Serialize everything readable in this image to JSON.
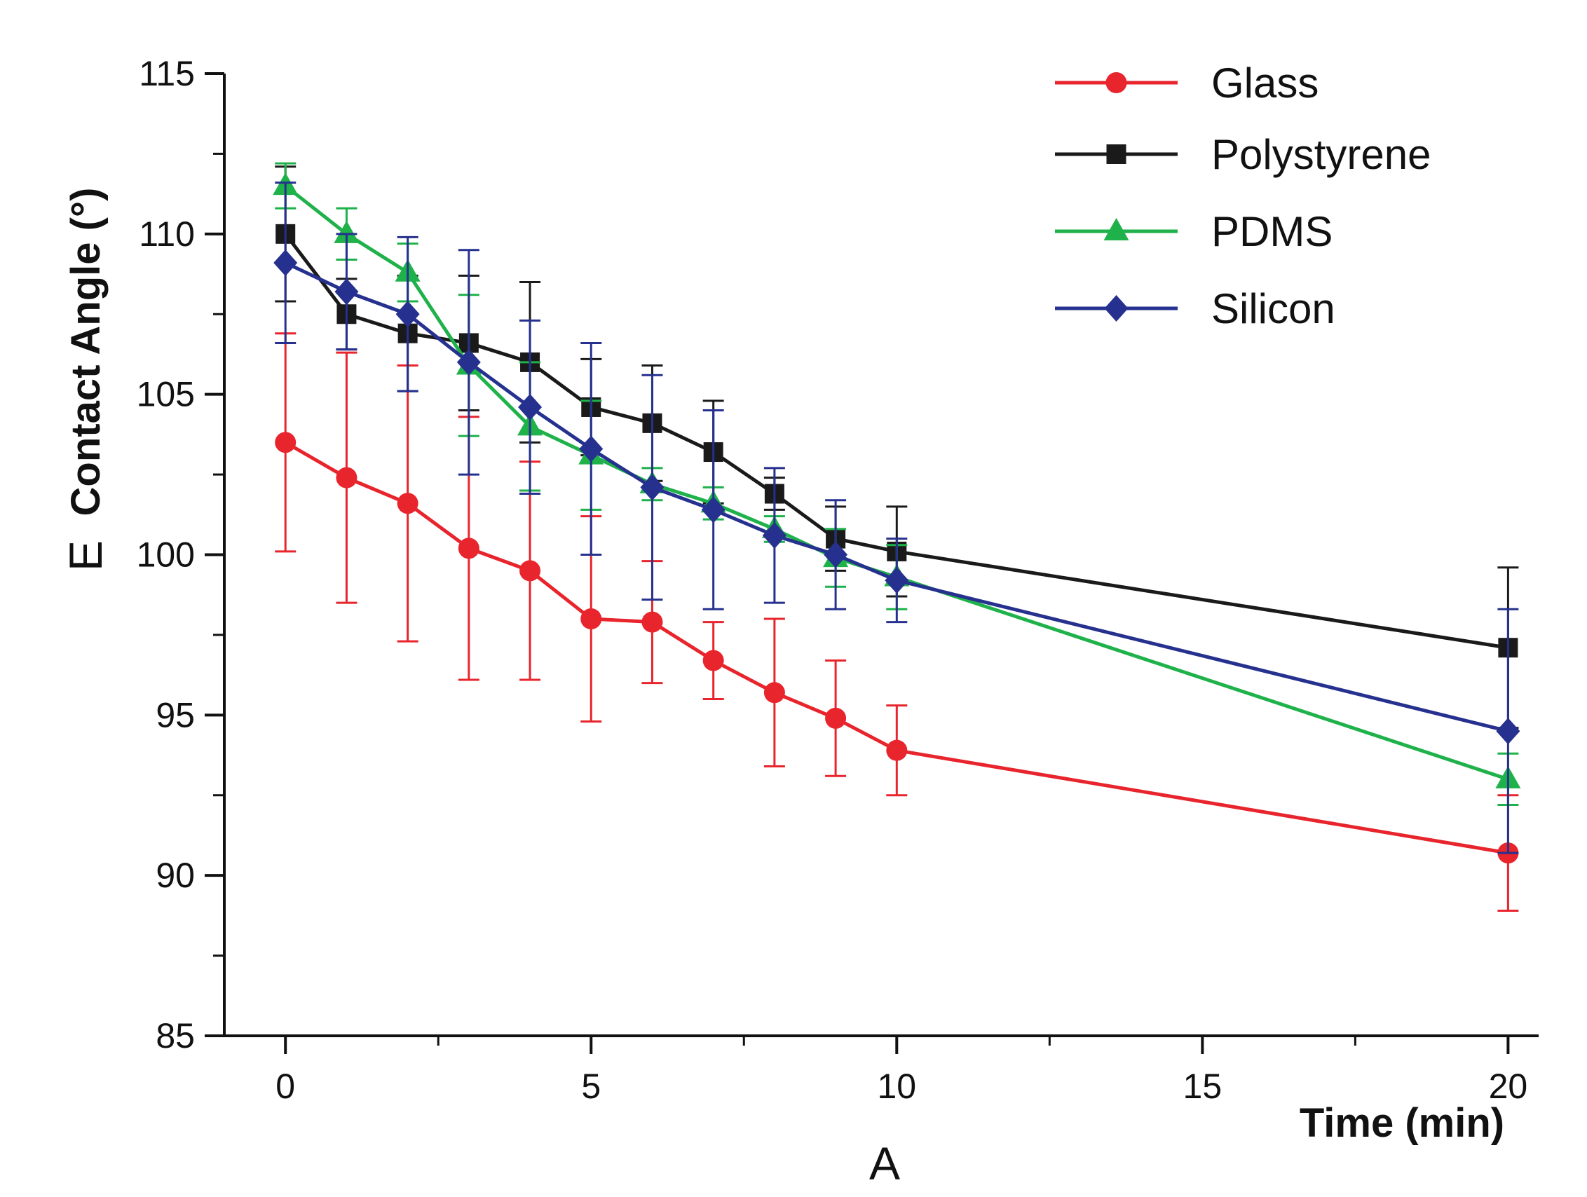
{
  "chart_data": {
    "type": "line",
    "title": "",
    "xlabel": "Time (min)",
    "ylabel": "Contact Angle (°)",
    "xlim": [
      -1,
      20.5
    ],
    "ylim": [
      85,
      115
    ],
    "xticks": [
      0,
      5,
      10,
      15,
      20
    ],
    "xtick_labels": [
      "0",
      "5",
      "10",
      "15",
      "20"
    ],
    "yticks": [
      85,
      90,
      95,
      100,
      105,
      110,
      115
    ],
    "ytick_labels": [
      "85",
      "90",
      "95",
      "100",
      "105",
      "110",
      "115"
    ],
    "x_minor_ticks": [
      2.5,
      7.5,
      12.5,
      17.5
    ],
    "y_minor_ticks": [
      87.5,
      92.5,
      97.5,
      102.5,
      107.5,
      112.5
    ],
    "grid": false,
    "legend_position": "top-right",
    "panel_labels": {
      "x_panel": "A",
      "y_panel": "E"
    },
    "series": [
      {
        "name": "Glass",
        "color": "#e8242c",
        "marker": "circle",
        "x": [
          0,
          1,
          2,
          3,
          4,
          5,
          6,
          7,
          8,
          9,
          10,
          20
        ],
        "y": [
          103.5,
          102.4,
          101.6,
          100.2,
          99.5,
          98.0,
          97.9,
          96.7,
          95.7,
          94.9,
          93.9,
          90.7
        ],
        "err": [
          3.4,
          3.9,
          4.3,
          4.1,
          3.4,
          3.2,
          1.9,
          1.2,
          2.3,
          1.8,
          1.4,
          1.8
        ]
      },
      {
        "name": "Polystyrene",
        "color": "#1a1a1a",
        "marker": "square",
        "x": [
          0,
          1,
          2,
          3,
          4,
          5,
          6,
          7,
          8,
          9,
          10,
          20
        ],
        "y": [
          110.0,
          107.5,
          106.9,
          106.6,
          106.0,
          104.6,
          104.1,
          103.2,
          101.9,
          100.5,
          100.1,
          97.1
        ],
        "err": [
          2.1,
          1.1,
          1.8,
          2.1,
          2.5,
          1.5,
          1.8,
          1.6,
          0.5,
          1.0,
          1.4,
          2.5
        ]
      },
      {
        "name": "PDMS",
        "color": "#1fb14a",
        "marker": "triangle",
        "x": [
          0,
          1,
          2,
          3,
          4,
          5,
          6,
          7,
          8,
          9,
          10,
          20
        ],
        "y": [
          111.5,
          110.0,
          108.8,
          105.9,
          104.0,
          103.1,
          102.2,
          101.6,
          100.8,
          99.9,
          99.3,
          93.0
        ],
        "err": [
          0.7,
          0.8,
          0.9,
          2.2,
          2.0,
          1.7,
          0.5,
          0.5,
          0.4,
          0.9,
          1.0,
          0.8
        ]
      },
      {
        "name": "Silicon",
        "color": "#26318f",
        "marker": "diamond",
        "x": [
          0,
          1,
          2,
          3,
          4,
          5,
          6,
          7,
          8,
          9,
          10,
          20
        ],
        "y": [
          109.1,
          108.2,
          107.5,
          106.0,
          104.6,
          103.3,
          102.1,
          101.4,
          100.6,
          100.0,
          99.2,
          94.5
        ],
        "err": [
          2.5,
          1.8,
          2.4,
          3.5,
          2.7,
          3.3,
          3.5,
          3.1,
          2.1,
          1.7,
          1.3,
          3.8
        ]
      }
    ]
  }
}
